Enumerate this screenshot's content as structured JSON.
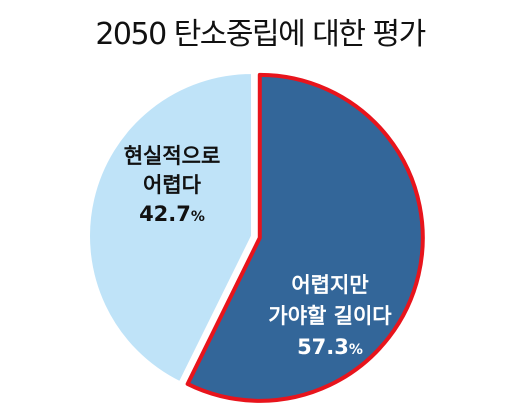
{
  "chart_data": {
    "type": "pie",
    "title": "2050 탄소중립에 대한 평가",
    "slices": [
      {
        "label_lines": [
          "어렵지만",
          "가야할 길이다"
        ],
        "value": 57.3,
        "value_text": "57.3",
        "unit": "%",
        "color": "#336699",
        "border_color": "#e8141c",
        "exploded": true,
        "label_color": "#ffffff"
      },
      {
        "label_lines": [
          "현실적으로",
          "어렵다"
        ],
        "value": 42.7,
        "value_text": "42.7",
        "unit": "%",
        "color": "#bfe3f8",
        "border_color": "#ffffff",
        "exploded": false,
        "label_color": "#111111"
      }
    ]
  }
}
